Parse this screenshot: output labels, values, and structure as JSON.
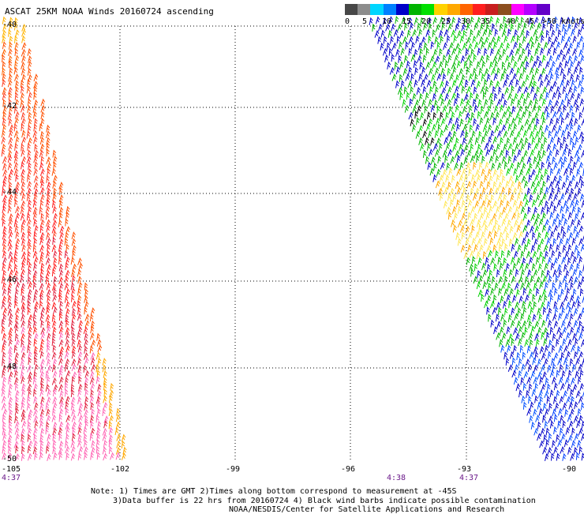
{
  "title": "ASCAT 25KM NOAA Winds 20160724 ascending",
  "legend": {
    "colors": [
      "#474747",
      "#8c8c8c",
      "#00d6ff",
      "#0080ff",
      "#0000c8",
      "#00b400",
      "#00e000",
      "#ffd200",
      "#ffa800",
      "#ff6400",
      "#ff1e1e",
      "#c81e1e",
      "#8c4e1e",
      "#ff00ff",
      "#b400ff",
      "#6400c8"
    ],
    "labels": [
      "0",
      "5",
      "10",
      "15",
      "20",
      "25",
      "30",
      "35",
      "40",
      "45",
      ">50 knots"
    ]
  },
  "lat_labels": [
    "-40",
    "-42",
    "-44",
    "-46",
    "-48",
    "-50"
  ],
  "lon_labels": [
    "-105",
    "-102",
    "-99",
    "-96",
    "-93",
    "-90"
  ],
  "time_labels": [
    {
      "text": "4:37",
      "pos": "left"
    },
    {
      "text": "4:38",
      "pos": "mid"
    },
    {
      "text": "4:37",
      "pos": "right"
    }
  ],
  "notes": {
    "line1": "Note: 1) Times are GMT 2)Times along bottom correspond to measurement at -45S",
    "line2": "3)Data buffer is 22 hrs from 20160724 4) Black wind barbs indicate possible contamination",
    "credit": "NOAA/NESDIS/Center for Satellite Applications and Research"
  }
}
